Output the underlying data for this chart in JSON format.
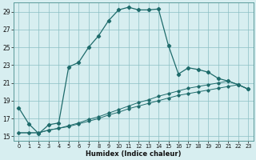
{
  "xlabel": "Humidex (Indice chaleur)",
  "background_color": "#d7eef0",
  "grid_color": "#8bbfc4",
  "line_color": "#1e6b6b",
  "xlim": [
    -0.5,
    23.5
  ],
  "ylim": [
    14.5,
    30.0
  ],
  "yticks": [
    15,
    17,
    19,
    21,
    23,
    25,
    27,
    29
  ],
  "xticks": [
    0,
    1,
    2,
    3,
    4,
    5,
    6,
    7,
    8,
    9,
    10,
    11,
    12,
    13,
    14,
    15,
    16,
    17,
    18,
    19,
    20,
    21,
    22,
    23
  ],
  "series1_x": [
    0,
    1,
    2,
    3,
    4,
    5,
    6,
    7,
    8,
    9,
    10,
    11,
    12,
    13,
    14,
    15,
    16,
    17,
    18,
    19,
    20,
    21,
    22,
    23
  ],
  "series1_y": [
    18.2,
    16.4,
    15.3,
    16.3,
    16.5,
    22.8,
    23.3,
    25.0,
    26.3,
    28.0,
    29.2,
    29.5,
    29.2,
    29.2,
    29.3,
    25.2,
    22.0,
    22.7,
    22.5,
    22.2,
    21.5,
    21.2,
    20.8,
    20.3
  ],
  "series2_x": [
    0,
    1,
    2,
    3,
    4,
    5,
    6,
    7,
    8,
    9,
    10,
    11,
    12,
    13,
    14,
    15,
    16,
    17,
    18,
    19,
    20,
    21,
    22,
    23
  ],
  "series2_y": [
    15.4,
    15.4,
    15.4,
    15.7,
    15.9,
    16.2,
    16.5,
    16.9,
    17.2,
    17.6,
    18.0,
    18.4,
    18.8,
    19.1,
    19.5,
    19.8,
    20.1,
    20.4,
    20.6,
    20.8,
    21.0,
    21.2,
    20.8,
    20.3
  ],
  "series3_x": [
    0,
    1,
    2,
    3,
    4,
    5,
    6,
    7,
    8,
    9,
    10,
    11,
    12,
    13,
    14,
    15,
    16,
    17,
    18,
    19,
    20,
    21,
    22,
    23
  ],
  "series3_y": [
    15.4,
    15.4,
    15.4,
    15.7,
    15.9,
    16.1,
    16.4,
    16.7,
    17.0,
    17.4,
    17.7,
    18.1,
    18.4,
    18.7,
    19.0,
    19.3,
    19.6,
    19.8,
    20.0,
    20.2,
    20.4,
    20.6,
    20.8,
    20.3
  ]
}
